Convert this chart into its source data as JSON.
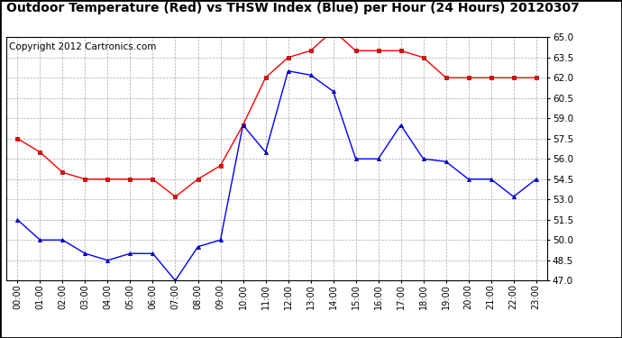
{
  "title": "Outdoor Temperature (Red) vs THSW Index (Blue) per Hour (24 Hours) 20120307",
  "copyright": "Copyright 2012 Cartronics.com",
  "hours": [
    "00:00",
    "01:00",
    "02:00",
    "03:00",
    "04:00",
    "05:00",
    "06:00",
    "07:00",
    "08:00",
    "09:00",
    "10:00",
    "11:00",
    "12:00",
    "13:00",
    "14:00",
    "15:00",
    "16:00",
    "17:00",
    "18:00",
    "19:00",
    "20:00",
    "21:00",
    "22:00",
    "23:00"
  ],
  "red_data": [
    57.5,
    56.5,
    55.0,
    54.5,
    54.5,
    54.5,
    54.5,
    53.2,
    54.5,
    55.5,
    58.5,
    62.0,
    63.5,
    64.0,
    65.5,
    64.0,
    64.0,
    64.0,
    63.5,
    62.0,
    62.0,
    62.0,
    62.0,
    62.0
  ],
  "blue_data": [
    51.5,
    50.0,
    50.0,
    49.0,
    48.5,
    49.0,
    49.0,
    47.0,
    49.5,
    50.0,
    58.5,
    56.5,
    62.5,
    62.2,
    61.0,
    56.0,
    56.0,
    58.5,
    56.0,
    55.8,
    54.5,
    54.5,
    53.2,
    54.5
  ],
  "ylim": [
    47.0,
    65.0
  ],
  "yticks": [
    47.0,
    48.5,
    50.0,
    51.5,
    53.0,
    54.5,
    56.0,
    57.5,
    59.0,
    60.5,
    62.0,
    63.5,
    65.0
  ],
  "background_color": "#ffffff",
  "plot_bg_color": "#ffffff",
  "grid_color": "#aaaaaa",
  "title_fontsize": 10,
  "copyright_fontsize": 7.5
}
